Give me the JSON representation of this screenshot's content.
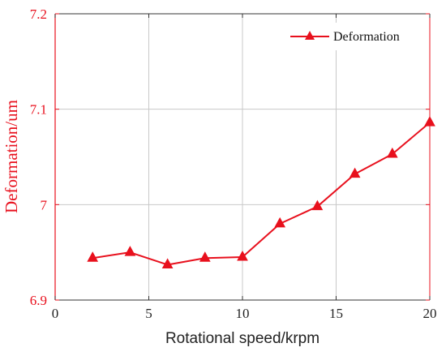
{
  "colors": {
    "series": "#e8101d",
    "axis_left": "#e8101d",
    "axis_bottom": "#333333",
    "grid": "#c8c8c8",
    "x_text": "#222222"
  },
  "chart_data": {
    "type": "line",
    "xlabel": "Rotational speed/krpm",
    "ylabel": "Deformation/um",
    "xlim": [
      0,
      20
    ],
    "ylim": [
      6.9,
      7.2
    ],
    "x_ticks": [
      0,
      5,
      10,
      15,
      20
    ],
    "x_tick_labels": [
      "0",
      "5",
      "10",
      "15",
      "20"
    ],
    "y_ticks": [
      6.9,
      7.0,
      7.1,
      7.2
    ],
    "y_tick_labels": [
      "6.9",
      "7",
      "7.1",
      "7.2"
    ],
    "grid": true,
    "legend_position": "top-right",
    "series": [
      {
        "name": "Deformation",
        "marker": "triangle",
        "x": [
          2,
          4,
          6,
          8,
          10,
          12,
          14,
          16,
          18,
          20
        ],
        "y": [
          6.944,
          6.95,
          6.937,
          6.944,
          6.945,
          6.98,
          6.998,
          7.032,
          7.053,
          7.086
        ]
      }
    ]
  }
}
